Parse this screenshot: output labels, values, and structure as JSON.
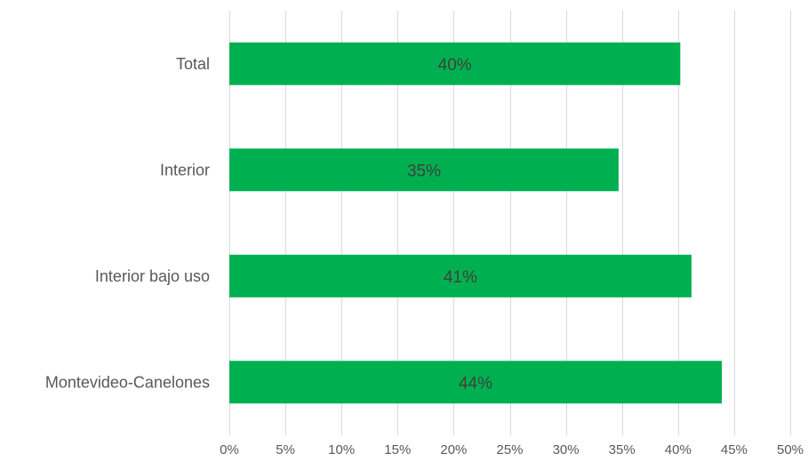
{
  "chart_data": {
    "type": "bar",
    "orientation": "horizontal",
    "categories": [
      "Total",
      "Interior",
      "Interior bajo uso",
      "Montevideo-Canelones"
    ],
    "values": [
      0.402,
      0.347,
      0.412,
      0.439
    ],
    "data_labels": [
      "40%",
      "35%",
      "41%",
      "44%"
    ],
    "xlim": [
      0,
      0.5
    ],
    "xticks": [
      0,
      0.05,
      0.1,
      0.15,
      0.2,
      0.25,
      0.3,
      0.35,
      0.4,
      0.45,
      0.5
    ],
    "xtick_labels": [
      "0%",
      "5%",
      "10%",
      "15%",
      "20%",
      "25%",
      "30%",
      "35%",
      "40%",
      "45%",
      "50%"
    ],
    "title": "",
    "xlabel": "",
    "ylabel": "",
    "grid": "vertical",
    "legend": "none",
    "bar_color": "#00b050"
  }
}
